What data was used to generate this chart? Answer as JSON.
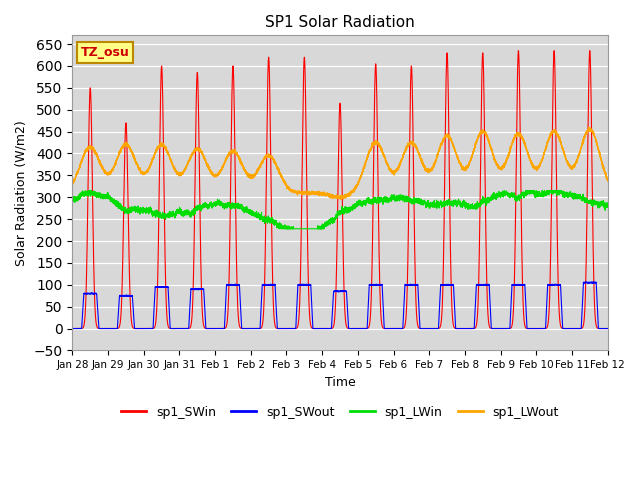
{
  "title": "SP1 Solar Radiation",
  "xlabel": "Time",
  "ylabel": "Solar Radiation (W/m2)",
  "ylim": [
    -50,
    670
  ],
  "yticks": [
    -50,
    0,
    50,
    100,
    150,
    200,
    250,
    300,
    350,
    400,
    450,
    500,
    550,
    600,
    650
  ],
  "bg_color": "#d8d8d8",
  "tz_label": "TZ_osu",
  "legend_entries": [
    "sp1_SWin",
    "sp1_SWout",
    "sp1_LWin",
    "sp1_LWout"
  ],
  "colors": {
    "sp1_SWin": "#ff0000",
    "sp1_SWout": "#0000ff",
    "sp1_LWin": "#00dd00",
    "sp1_LWout": "#ffa500"
  },
  "line_width": 0.8,
  "n_days": 15,
  "samples_per_day": 480,
  "sw_peaks": [
    550,
    470,
    600,
    585,
    600,
    620,
    620,
    515,
    605,
    600,
    630,
    630,
    635,
    635,
    635
  ],
  "sw_out_peaks": [
    80,
    75,
    95,
    90,
    100,
    100,
    100,
    85,
    100,
    100,
    100,
    100,
    100,
    100,
    105
  ],
  "lw_out_night": 310,
  "lw_out_day_peaks": [
    415,
    420,
    420,
    410,
    405,
    395,
    310,
    300,
    425,
    425,
    440,
    450,
    445,
    450,
    455
  ],
  "lw_in_base": 291,
  "tick_labels": [
    "Jan 28",
    "Jan 29",
    "Jan 30",
    "Jan 31",
    "Feb 1",
    "Feb 2",
    "Feb 3",
    "Feb 4",
    "Feb 5",
    "Feb 6",
    "Feb 7",
    "Feb 8",
    "Feb 9",
    "Feb 10",
    "Feb 11",
    "Feb 12"
  ]
}
